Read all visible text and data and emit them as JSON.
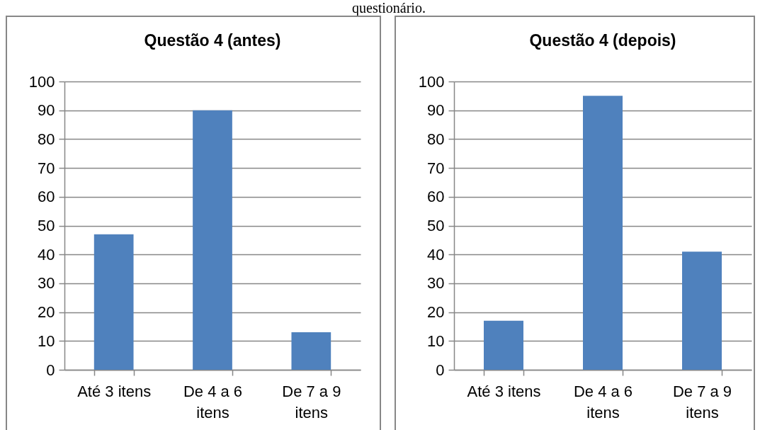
{
  "chart_data": [
    {
      "type": "bar",
      "title": "Questão 4 (antes)",
      "categories": [
        "Até 3 itens",
        "De 4 a 6 itens",
        "De 7 a 9 itens"
      ],
      "values": [
        47,
        90,
        13
      ],
      "color": "#4f81bd",
      "ylim": [
        0,
        100
      ],
      "yticks": [
        0,
        10,
        20,
        30,
        40,
        50,
        60,
        70,
        80,
        90,
        100
      ],
      "grid": "y",
      "annotations": [
        "questionário."
      ]
    },
    {
      "type": "bar",
      "title": "Questão 4 (depois)",
      "categories": [
        "Até 3 itens",
        "De 4 a 6 itens",
        "De 7 a 9 itens"
      ],
      "values": [
        17,
        95,
        41
      ],
      "color": "#4f81bd",
      "ylim": [
        0,
        100
      ],
      "yticks": [
        0,
        10,
        20,
        30,
        40,
        50,
        60,
        70,
        80,
        90,
        100
      ],
      "grid": "y"
    }
  ]
}
